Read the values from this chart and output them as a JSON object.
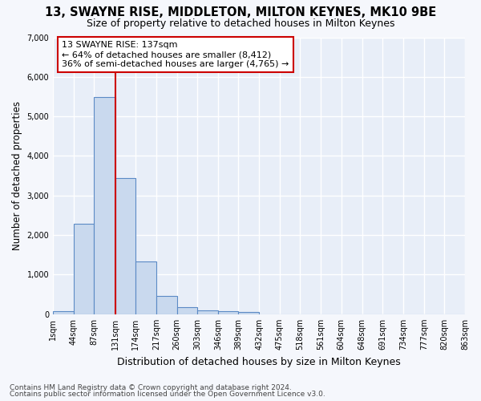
{
  "title1": "13, SWAYNE RISE, MIDDLETON, MILTON KEYNES, MK10 9BE",
  "title2": "Size of property relative to detached houses in Milton Keynes",
  "xlabel": "Distribution of detached houses by size in Milton Keynes",
  "ylabel": "Number of detached properties",
  "footnote1": "Contains HM Land Registry data © Crown copyright and database right 2024.",
  "footnote2": "Contains public sector information licensed under the Open Government Licence v3.0.",
  "bar_values": [
    70,
    2280,
    5480,
    3450,
    1330,
    460,
    175,
    100,
    75,
    55,
    0,
    0,
    0,
    0,
    0,
    0,
    0,
    0,
    0,
    0
  ],
  "bin_edges": [
    1,
    44,
    87,
    131,
    174,
    217,
    260,
    303,
    346,
    389,
    432,
    475,
    518,
    561,
    604,
    648,
    691,
    734,
    777,
    820,
    863
  ],
  "x_tick_labels": [
    "1sqm",
    "44sqm",
    "87sqm",
    "131sqm",
    "174sqm",
    "217sqm",
    "260sqm",
    "303sqm",
    "346sqm",
    "389sqm",
    "432sqm",
    "475sqm",
    "518sqm",
    "561sqm",
    "604sqm",
    "648sqm",
    "691sqm",
    "734sqm",
    "777sqm",
    "820sqm",
    "863sqm"
  ],
  "ylim": [
    0,
    7000
  ],
  "yticks": [
    0,
    1000,
    2000,
    3000,
    4000,
    5000,
    6000,
    7000
  ],
  "bar_color": "#c9d9ee",
  "bar_edge_color": "#5b8ac5",
  "bg_color": "#e8eef8",
  "fig_bg_color": "#f5f7fc",
  "grid_color": "#ffffff",
  "vline_x": 131,
  "vline_color": "#cc0000",
  "annotation_text": "13 SWAYNE RISE: 137sqm\n← 64% of detached houses are smaller (8,412)\n36% of semi-detached houses are larger (4,765) →",
  "annotation_box_edge_color": "#cc0000",
  "annotation_box_bg": "#ffffff",
  "title1_fontsize": 10.5,
  "title2_fontsize": 9,
  "ylabel_fontsize": 8.5,
  "xlabel_fontsize": 9,
  "tick_fontsize": 7,
  "annotation_fontsize": 8,
  "footnote_fontsize": 6.5
}
